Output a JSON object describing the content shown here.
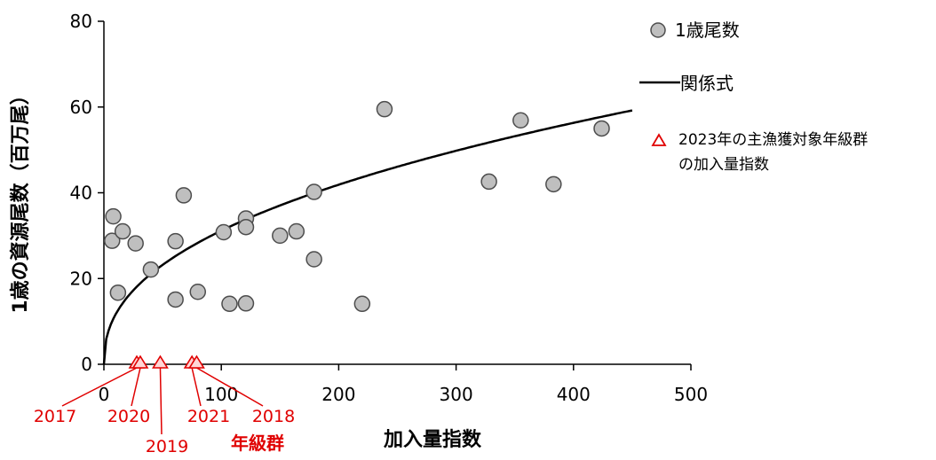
{
  "chart_data": {
    "type": "scatter",
    "xlabel": "加入量指数",
    "ylabel": "1歳の資源尾数（百万尾）",
    "xlim": [
      0,
      500
    ],
    "ylim": [
      0,
      80
    ],
    "x_ticks": [
      0,
      100,
      200,
      300,
      400,
      500
    ],
    "y_ticks": [
      0,
      20,
      40,
      60,
      80
    ],
    "grid": false,
    "legend_position": "right",
    "series": [
      {
        "name": "1歳尾数",
        "kind": "scatter",
        "color": "#bfbfbf",
        "points": [
          [
            7,
            28.8
          ],
          [
            8,
            34.5
          ],
          [
            12,
            16.7
          ],
          [
            16,
            31
          ],
          [
            27,
            28.2
          ],
          [
            40,
            22.1
          ],
          [
            61,
            28.7
          ],
          [
            61,
            15.1
          ],
          [
            68,
            39.4
          ],
          [
            80,
            16.9
          ],
          [
            102,
            30.8
          ],
          [
            107,
            14.1
          ],
          [
            121,
            34
          ],
          [
            121,
            32
          ],
          [
            121,
            14.2
          ],
          [
            150,
            30
          ],
          [
            164,
            31
          ],
          [
            179,
            40.2
          ],
          [
            179,
            24.5
          ],
          [
            220,
            14.1
          ],
          [
            239,
            59.5
          ],
          [
            328,
            42.6
          ],
          [
            355,
            56.9
          ],
          [
            383,
            42
          ],
          [
            424,
            55
          ]
        ]
      },
      {
        "name": "関係式",
        "kind": "line",
        "color": "#000000",
        "formula": "y = 4.36 * x^0.427",
        "a": 4.36,
        "b": 0.427,
        "x_range": [
          0,
          450
        ]
      },
      {
        "name": "2023年の主漁獲対象年級群の加入量指数",
        "kind": "marker",
        "color": "#e00000",
        "points": [
          {
            "x": 28,
            "y": 0,
            "label": "2017"
          },
          {
            "x": 31,
            "y": 0,
            "label": "2020"
          },
          {
            "x": 48,
            "y": 0,
            "label": "2019"
          },
          {
            "x": 75,
            "y": 0,
            "label": "2021"
          },
          {
            "x": 79,
            "y": 0,
            "label": "2018"
          }
        ]
      }
    ],
    "annotations": [
      {
        "text": "年級群",
        "color": "#e00000"
      }
    ],
    "legend": {
      "scatter_label": "1歳尾数",
      "line_label": "関係式",
      "marker_label_line1": "2023年の主漁獲対象年級群",
      "marker_label_line2": "の加入量指数"
    }
  }
}
